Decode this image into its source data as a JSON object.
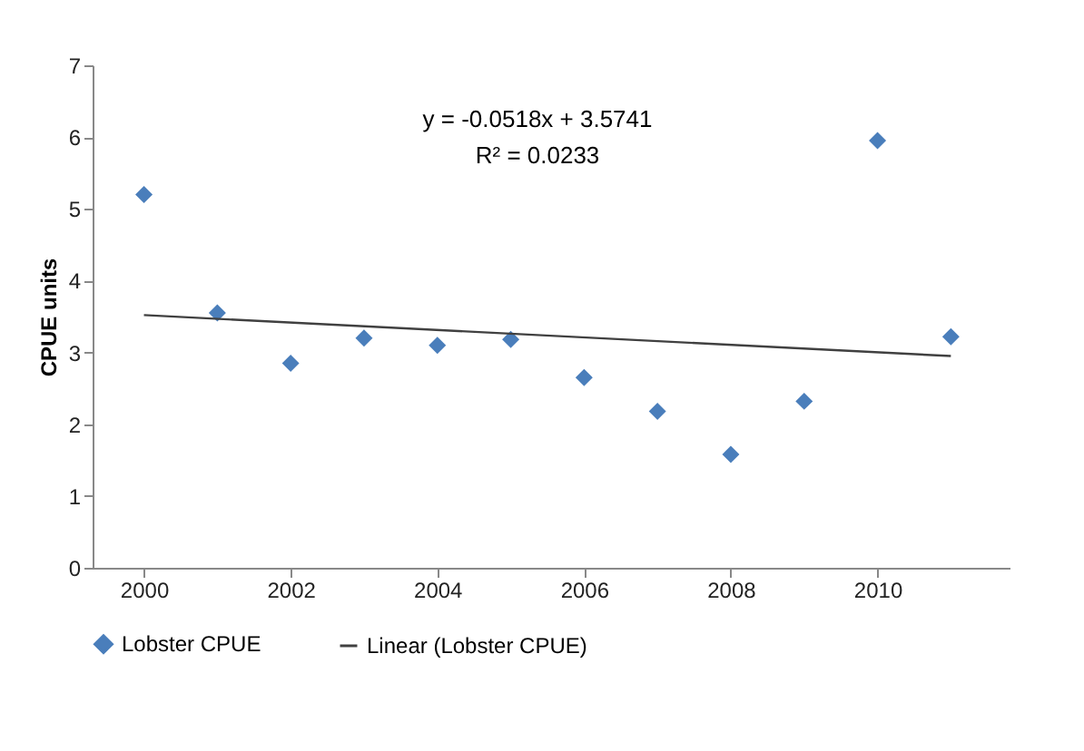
{
  "chart_data": {
    "type": "scatter",
    "ylabel": "CPUE units",
    "x": [
      2000,
      2001,
      2002,
      2003,
      2004,
      2005,
      2006,
      2007,
      2008,
      2009,
      2010,
      2011
    ],
    "series": [
      {
        "name": "Lobster CPUE",
        "marker": "diamond",
        "color": "#4a7ebb",
        "values": [
          5.2,
          3.55,
          2.85,
          3.2,
          3.1,
          3.18,
          2.65,
          2.18,
          1.58,
          2.32,
          5.95,
          3.22
        ]
      },
      {
        "name": "Linear (Lobster CPUE)",
        "type": "line",
        "color": "#404040",
        "x": [
          2000,
          2011
        ],
        "values": [
          3.52,
          2.95
        ]
      }
    ],
    "annotations": [
      "y = -0.0518x + 3.5741",
      "R² = 0.0233"
    ],
    "xlim": [
      1999.3,
      2011.8
    ],
    "xticks": [
      2000,
      2002,
      2004,
      2006,
      2008,
      2010
    ],
    "ylim": [
      0,
      7
    ],
    "yticks": [
      0,
      1,
      2,
      3,
      4,
      5,
      6,
      7
    ],
    "legend": "bottom",
    "grid": false
  }
}
